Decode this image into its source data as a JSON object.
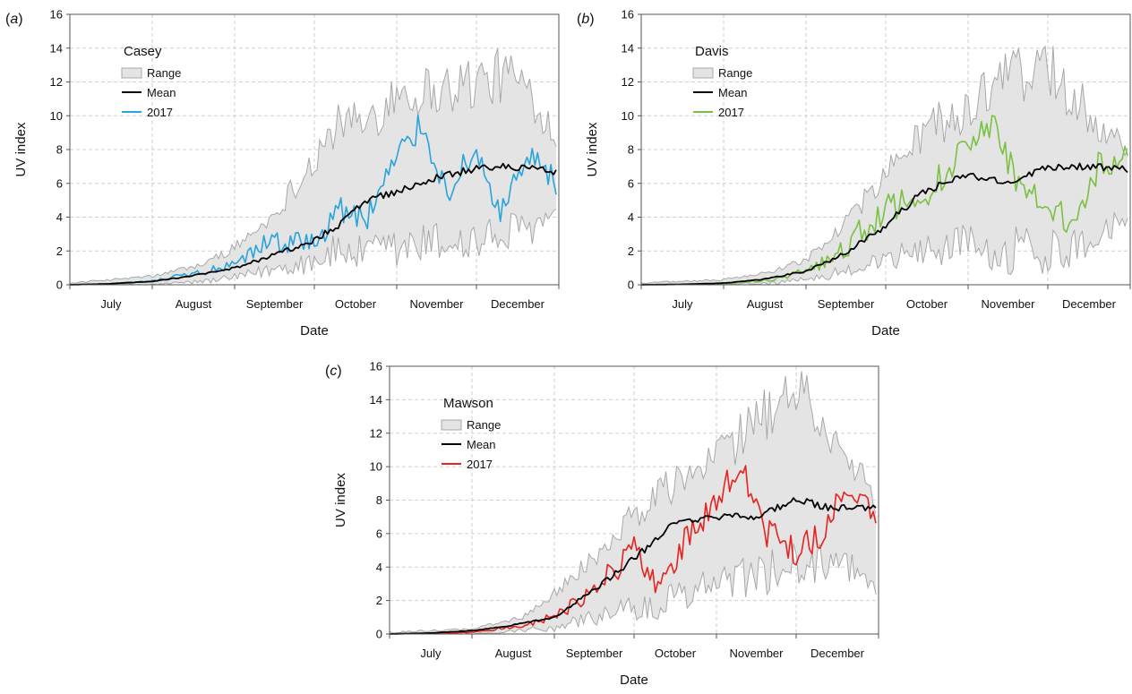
{
  "chart_data": [
    {
      "panel_label": "(a)",
      "type": "line",
      "title": "Casey",
      "xlabel": "Date",
      "ylabel": "UV index",
      "ylim": [
        0,
        16
      ],
      "yticks": [
        0,
        2,
        4,
        6,
        8,
        10,
        12,
        14,
        16
      ],
      "xlim": [
        "2017-07-01",
        "2017-12-31"
      ],
      "month_labels": [
        "July",
        "August",
        "September",
        "October",
        "November",
        "December"
      ],
      "grid": true,
      "legend": {
        "position": "top-left",
        "entries": [
          "Range",
          "Mean",
          "2017"
        ]
      },
      "colors": {
        "range_fill": "#e4e4e4",
        "range_edge": "#a8a8a8",
        "mean": "#000000",
        "series_2017": "#29a3dc"
      },
      "series": [
        {
          "name": "Range",
          "kind": "band",
          "x": [
            "2017-07-01",
            "2017-08-01",
            "2017-08-20",
            "2017-09-01",
            "2017-09-15",
            "2017-10-01",
            "2017-10-10",
            "2017-10-20",
            "2017-11-01",
            "2017-11-15",
            "2017-12-01",
            "2017-12-15",
            "2017-12-31"
          ],
          "low": [
            0,
            0,
            0.2,
            0.4,
            0.9,
            1.5,
            2.0,
            1.8,
            2.0,
            2.5,
            2.5,
            3.0,
            4.0
          ],
          "high": [
            0.1,
            0.5,
            1.2,
            2.2,
            4.0,
            7.5,
            9.5,
            9.5,
            11.5,
            11.5,
            12.0,
            12.5,
            9.0
          ]
        },
        {
          "name": "Mean",
          "x": [
            "2017-07-01",
            "2017-07-15",
            "2017-08-01",
            "2017-08-15",
            "2017-09-01",
            "2017-09-15",
            "2017-10-01",
            "2017-10-10",
            "2017-10-20",
            "2017-11-01",
            "2017-11-15",
            "2017-12-01",
            "2017-12-15",
            "2017-12-31"
          ],
          "values": [
            0,
            0.05,
            0.2,
            0.5,
            1.0,
            1.7,
            2.6,
            3.5,
            5.0,
            5.5,
            6.3,
            6.9,
            7.0,
            6.7
          ]
        },
        {
          "name": "2017",
          "x": [
            "2017-07-01",
            "2017-07-15",
            "2017-08-01",
            "2017-08-15",
            "2017-09-01",
            "2017-09-15",
            "2017-10-01",
            "2017-10-10",
            "2017-10-20",
            "2017-11-01",
            "2017-11-10",
            "2017-11-20",
            "2017-12-01",
            "2017-12-10",
            "2017-12-20",
            "2017-12-31"
          ],
          "values": [
            0,
            0.05,
            0.2,
            0.6,
            1.1,
            2.6,
            2.4,
            4.5,
            3.8,
            7.5,
            9.5,
            5.5,
            8.0,
            4.0,
            7.5,
            6.0
          ]
        }
      ]
    },
    {
      "panel_label": "(b)",
      "type": "line",
      "title": "Davis",
      "xlabel": "Date",
      "ylabel": "UV index",
      "ylim": [
        0,
        16
      ],
      "yticks": [
        0,
        2,
        4,
        6,
        8,
        10,
        12,
        14,
        16
      ],
      "xlim": [
        "2017-07-01",
        "2017-12-31"
      ],
      "month_labels": [
        "July",
        "August",
        "September",
        "October",
        "November",
        "December"
      ],
      "grid": true,
      "legend": {
        "position": "top-left",
        "entries": [
          "Range",
          "Mean",
          "2017"
        ]
      },
      "colors": {
        "range_fill": "#e4e4e4",
        "range_edge": "#a8a8a8",
        "mean": "#000000",
        "series_2017": "#7ac143"
      },
      "series": [
        {
          "name": "Range",
          "kind": "band",
          "x": [
            "2017-07-01",
            "2017-08-01",
            "2017-08-20",
            "2017-09-01",
            "2017-09-15",
            "2017-10-01",
            "2017-10-15",
            "2017-11-01",
            "2017-11-15",
            "2017-12-01",
            "2017-12-15",
            "2017-12-31"
          ],
          "low": [
            0,
            0,
            0.1,
            0.3,
            0.8,
            1.5,
            2.0,
            2.5,
            2.0,
            2.0,
            2.5,
            4.0
          ],
          "high": [
            0.1,
            0.3,
            0.8,
            1.5,
            3.5,
            6.5,
            9.0,
            10.5,
            12.0,
            13.0,
            10.5,
            8.0
          ]
        },
        {
          "name": "Mean",
          "x": [
            "2017-07-01",
            "2017-07-15",
            "2017-08-01",
            "2017-08-15",
            "2017-09-01",
            "2017-09-15",
            "2017-10-01",
            "2017-10-15",
            "2017-11-01",
            "2017-11-15",
            "2017-12-01",
            "2017-12-15",
            "2017-12-31"
          ],
          "values": [
            0,
            0.02,
            0.1,
            0.3,
            0.8,
            1.8,
            3.5,
            5.5,
            6.5,
            6.0,
            7.0,
            7.0,
            6.8
          ]
        },
        {
          "name": "2017",
          "x": [
            "2017-07-01",
            "2017-08-01",
            "2017-08-20",
            "2017-09-01",
            "2017-09-15",
            "2017-10-01",
            "2017-10-15",
            "2017-11-01",
            "2017-11-10",
            "2017-11-20",
            "2017-12-01",
            "2017-12-10",
            "2017-12-20",
            "2017-12-31"
          ],
          "values": [
            0,
            0.05,
            0.3,
            0.8,
            2.0,
            4.5,
            5.0,
            8.5,
            9.5,
            6.0,
            5.0,
            3.5,
            7.0,
            7.5
          ]
        }
      ]
    },
    {
      "panel_label": "(c)",
      "type": "line",
      "title": "Mawson",
      "xlabel": "Date",
      "ylabel": "UV index",
      "ylim": [
        0,
        16
      ],
      "yticks": [
        0,
        2,
        4,
        6,
        8,
        10,
        12,
        14,
        16
      ],
      "xlim": [
        "2017-07-01",
        "2017-12-31"
      ],
      "month_labels": [
        "July",
        "August",
        "September",
        "October",
        "November",
        "December"
      ],
      "grid": true,
      "legend": {
        "position": "top-left",
        "entries": [
          "Range",
          "Mean",
          "2017"
        ]
      },
      "colors": {
        "range_fill": "#e4e4e4",
        "range_edge": "#a8a8a8",
        "mean": "#000000",
        "series_2017": "#e8221f"
      },
      "series": [
        {
          "name": "Range",
          "kind": "band",
          "x": [
            "2017-07-01",
            "2017-08-01",
            "2017-08-20",
            "2017-09-01",
            "2017-09-15",
            "2017-10-01",
            "2017-10-15",
            "2017-11-01",
            "2017-11-15",
            "2017-12-01",
            "2017-12-15",
            "2017-12-31"
          ],
          "low": [
            0,
            0,
            0.2,
            0.4,
            1.0,
            1.5,
            2.0,
            3.0,
            3.5,
            4.0,
            4.5,
            3.0
          ],
          "high": [
            0.1,
            0.3,
            1.0,
            2.5,
            4.5,
            7.0,
            9.0,
            10.5,
            12.5,
            14.5,
            12.0,
            8.0
          ]
        },
        {
          "name": "Mean",
          "x": [
            "2017-07-01",
            "2017-07-15",
            "2017-08-01",
            "2017-08-15",
            "2017-09-01",
            "2017-09-15",
            "2017-10-01",
            "2017-10-15",
            "2017-11-01",
            "2017-11-15",
            "2017-12-01",
            "2017-12-15",
            "2017-12-31"
          ],
          "values": [
            0,
            0.05,
            0.2,
            0.5,
            1.0,
            2.5,
            4.5,
            6.5,
            7.0,
            7.0,
            8.0,
            7.5,
            7.5
          ]
        },
        {
          "name": "2017",
          "x": [
            "2017-07-01",
            "2017-08-01",
            "2017-08-20",
            "2017-09-01",
            "2017-09-15",
            "2017-10-01",
            "2017-10-10",
            "2017-10-20",
            "2017-11-01",
            "2017-11-10",
            "2017-11-20",
            "2017-12-01",
            "2017-12-10",
            "2017-12-20",
            "2017-12-31"
          ],
          "values": [
            0,
            0.1,
            0.5,
            1.0,
            2.5,
            5.0,
            3.0,
            5.5,
            8.0,
            10.0,
            6.0,
            5.0,
            6.0,
            8.5,
            7.5
          ]
        }
      ]
    }
  ]
}
